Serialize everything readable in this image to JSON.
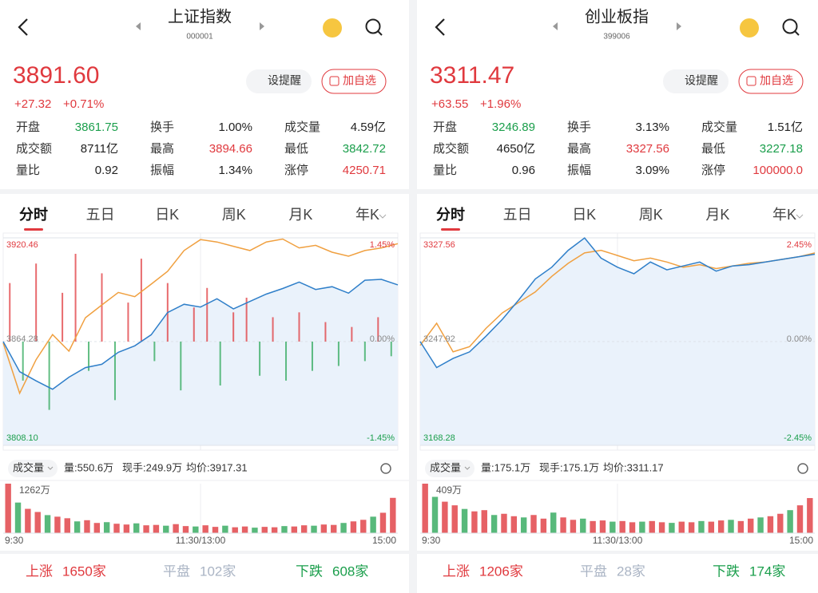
{
  "panels": [
    {
      "header": {
        "title": "上证指数",
        "code": "000001"
      },
      "quote": {
        "price": "3891.60",
        "change": "+27.32",
        "percent": "+0.71%"
      },
      "buttons": [
        "设提醒",
        "加自选"
      ],
      "stats": [
        {
          "label": "开盘",
          "value": "3861.75",
          "color": "#1a9e4b"
        },
        {
          "label": "换手",
          "value": "1.00%",
          "color": "#222222"
        },
        {
          "label": "成交量",
          "value": "4.59亿",
          "color": "#222222"
        },
        {
          "label": "成交额",
          "value": "8711亿",
          "color": "#222222"
        },
        {
          "label": "最高",
          "value": "3894.66",
          "color": "#e0393e"
        },
        {
          "label": "最低",
          "value": "3842.72",
          "color": "#1a9e4b"
        },
        {
          "label": "量比",
          "value": "0.92",
          "color": "#222222"
        },
        {
          "label": "振幅",
          "value": "1.34%",
          "color": "#222222"
        },
        {
          "label": "涨停",
          "value": "4250.71",
          "color": "#e0393e"
        }
      ],
      "tabs": [
        "分时",
        "五日",
        "日K",
        "周K",
        "月K",
        "年K"
      ],
      "chart": {
        "ylim": [
          3808.1,
          3920.46
        ],
        "yticks": [
          3920.46,
          3864.28,
          {
            "value": 3808.1,
            "label": "3808.10"
          }
        ],
        "y2lim": [
          -1.45,
          1.45
        ],
        "y2ticks": [
          {
            "value": 1.45,
            "label": "1.45%"
          },
          {
            "value": 0,
            "label": "0.00%"
          },
          {
            "value": -1.45,
            "label": "-1.45%"
          }
        ],
        "series": [
          {
            "color": "#2f7fc9",
            "values": [
              3864.3,
              3848.0,
              3843.0,
              3838.5,
              3845.0,
              3850.2,
              3852.0,
              3858.5,
              3862.0,
              3868.0,
              3880.0,
              3884.5,
              3883.0,
              3887.5,
              3882.0,
              3886.0,
              3890.0,
              3893.0,
              3896.5,
              3892.5,
              3894.0,
              3890.5,
              3897.5,
              3898.0,
              3895.0
            ]
          },
          {
            "color": "#f0a040",
            "values": [
              3863.6,
              3836.3,
              3854.5,
              3868.1,
              3859.1,
              3877.2,
              3884.1,
              3890.9,
              3888.6,
              3895.4,
              3902.3,
              3913.6,
              3919.5,
              3918.2,
              3915.9,
              3913.6,
              3918.2,
              3919.8,
              3915.0,
              3916.4,
              3912.7,
              3910.5,
              3913.6,
              3915.0,
              3917.3
            ]
          }
        ],
        "flow": [
          60,
          -40,
          80,
          -70,
          50,
          90,
          -30,
          70,
          -60,
          40,
          85,
          -20,
          60,
          -50,
          35,
          55,
          -45,
          30,
          45,
          -35,
          25,
          -40,
          30,
          -30,
          20,
          -25,
          15,
          -20,
          25,
          -15
        ]
      },
      "volume_bar": {
        "label": "成交量",
        "items": [
          "量:550.6万",
          "现手:249.9万",
          "均价:3917.31"
        ]
      },
      "volume": {
        "max_label": "1262万",
        "values": [
          1262,
          780,
          620,
          540,
          460,
          420,
          380,
          300,
          330,
          260,
          280,
          240,
          220,
          250,
          200,
          210,
          190,
          230,
          180,
          170,
          200,
          160,
          190,
          150,
          170,
          140,
          160,
          150,
          180,
          170,
          200,
          190,
          220,
          210,
          260,
          300,
          340,
          420,
          520,
          900
        ],
        "times": [
          "9:30",
          "11:30/13:00",
          "15:00"
        ]
      },
      "footer": [
        {
          "label": "上涨",
          "count": "1650家",
          "color": "#e0393e"
        },
        {
          "label": "平盘",
          "count": "102家",
          "color": "#aab4c4"
        },
        {
          "label": "下跌",
          "count": "608家",
          "color": "#1a9e4b"
        }
      ]
    },
    {
      "header": {
        "title": "创业板指",
        "code": "399006"
      },
      "quote": {
        "price": "3311.47",
        "change": "+63.55",
        "percent": "+1.96%"
      },
      "buttons": [
        "设提醒",
        "加自选"
      ],
      "stats": [
        {
          "label": "开盘",
          "value": "3246.89",
          "color": "#1a9e4b"
        },
        {
          "label": "换手",
          "value": "3.13%",
          "color": "#222222"
        },
        {
          "label": "成交量",
          "value": "1.51亿",
          "color": "#222222"
        },
        {
          "label": "成交额",
          "value": "4650亿",
          "color": "#222222"
        },
        {
          "label": "最高",
          "value": "3327.56",
          "color": "#e0393e"
        },
        {
          "label": "最低",
          "value": "3227.18",
          "color": "#1a9e4b"
        },
        {
          "label": "量比",
          "value": "0.96",
          "color": "#222222"
        },
        {
          "label": "振幅",
          "value": "3.09%",
          "color": "#222222"
        },
        {
          "label": "涨停",
          "value": "100000.0",
          "color": "#e0393e"
        }
      ],
      "tabs": [
        "分时",
        "五日",
        "日K",
        "周K",
        "月K",
        "年K"
      ],
      "chart": {
        "ylim": [
          3168.28,
          3327.56
        ],
        "yticks": [
          3327.56,
          3247.92,
          3168.28
        ],
        "y2lim": [
          -2.45,
          2.45
        ],
        "y2ticks": [
          {
            "value": 2.45,
            "label": "2.45%"
          },
          {
            "value": 0,
            "label": "0.00%"
          },
          {
            "value": -2.45,
            "label": "-2.45%"
          }
        ],
        "series": [
          {
            "color": "#2f7fc9",
            "values": [
              3247.9,
              3228.0,
              3235.0,
              3240.0,
              3252.0,
              3265.0,
              3280.0,
              3296.0,
              3305.0,
              3318.0,
              3327.5,
              3312.0,
              3305.0,
              3300.0,
              3309.0,
              3303.0,
              3306.0,
              3309.0,
              3302.0,
              3306.0,
              3307.0,
              3309.0,
              3311.0,
              3313.0,
              3315.0
            ]
          },
          {
            "color": "#f0a040",
            "values": [
              3245.0,
              3262.0,
              3240.0,
              3244.0,
              3258.0,
              3270.0,
              3278.0,
              3286.0,
              3298.0,
              3308.0,
              3316.0,
              3318.0,
              3314.0,
              3310.0,
              3312.0,
              3309.0,
              3305.0,
              3307.0,
              3304.0,
              3306.0,
              3308.0,
              3309.0,
              3311.0,
              3313.0,
              3316.0
            ]
          }
        ],
        "flow": []
      },
      "volume_bar": {
        "label": "成交量",
        "items": [
          "量:175.1万",
          "现手:175.1万",
          "均价:3311.17"
        ]
      },
      "volume": {
        "max_label": "409万",
        "values": [
          409,
          300,
          260,
          230,
          200,
          180,
          190,
          150,
          160,
          140,
          130,
          150,
          120,
          170,
          130,
          110,
          120,
          100,
          105,
          95,
          100,
          90,
          95,
          100,
          90,
          85,
          95,
          90,
          100,
          95,
          105,
          110,
          100,
          120,
          130,
          140,
          160,
          190,
          230,
          290
        ],
        "times": [
          "9:30",
          "11:30/13:00",
          "15:00"
        ]
      },
      "footer": [
        {
          "label": "上涨",
          "count": "1206家",
          "color": "#e0393e"
        },
        {
          "label": "平盘",
          "count": "28家",
          "color": "#aab4c4"
        },
        {
          "label": "下跌",
          "count": "174家",
          "color": "#1a9e4b"
        }
      ]
    }
  ]
}
